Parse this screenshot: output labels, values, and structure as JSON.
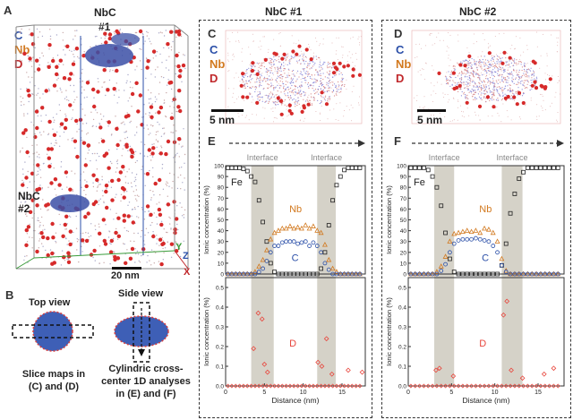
{
  "panel_a": {
    "letter": "A",
    "legend": {
      "c": "C",
      "nb": "Nb",
      "d": "D"
    },
    "label_top": {
      "name": "NbC",
      "num": "#1"
    },
    "label_bottom": {
      "name": "NbC",
      "num": "#2"
    },
    "scalebar": "20 nm",
    "axes": {
      "y": "Y",
      "z": "Z",
      "x": "X"
    }
  },
  "panel_b": {
    "letter": "B",
    "top_view": "Top view",
    "side_view": "Side view",
    "caption_left": [
      "Slice maps in",
      "(C) and (D)"
    ],
    "caption_right": [
      "Cylindric cross-",
      "center 1D analyses",
      "in (E) and (F)"
    ]
  },
  "column_titles": {
    "left": "NbC #1",
    "right": "NbC #2"
  },
  "map_c": {
    "letter": "C",
    "legend": {
      "c": "C",
      "nb": "Nb",
      "d": "D"
    },
    "scalebar": "5 nm"
  },
  "map_d": {
    "letter": "D",
    "legend": {
      "c": "C",
      "nb": "Nb",
      "d": "D"
    },
    "scalebar": "5 nm"
  },
  "profile_e": {
    "letter": "E"
  },
  "profile_f": {
    "letter": "F"
  },
  "colors": {
    "fe": "#222222",
    "nb": "#d2791f",
    "c": "#2b4fa8",
    "d": "#e8453c",
    "interface": "#d5d2c8"
  },
  "chart_data": [
    {
      "type": "scatter",
      "panel": "E",
      "xlabel": "Distance (nm)",
      "ylabel_top": "Ionic concentration (%)",
      "ylabel_bottom": "Ionic concentration (%)",
      "xlim": [
        0,
        18
      ],
      "xticks": [
        0,
        5,
        10,
        15
      ],
      "ylim_top": [
        0,
        100
      ],
      "yticks_top": [
        0,
        10,
        20,
        30,
        40,
        50,
        60,
        70,
        80,
        90,
        100
      ],
      "ylim_bottom": [
        0,
        0.55
      ],
      "yticks_bottom": [
        0.0,
        0.1,
        0.2,
        0.3,
        0.4,
        0.5
      ],
      "interfaces": [
        [
          3.3,
          6.2
        ],
        [
          11.8,
          14.2
        ]
      ],
      "interface_label": "Interface",
      "series_labels": {
        "fe": "Fe",
        "nb": "Nb",
        "c": "C",
        "d": "D"
      },
      "x": [
        0.3,
        0.8,
        1.3,
        1.8,
        2.3,
        2.8,
        3.3,
        3.8,
        4.3,
        4.8,
        5.3,
        5.8,
        6.3,
        6.8,
        7.3,
        7.8,
        8.3,
        8.8,
        9.3,
        9.8,
        10.3,
        10.8,
        11.3,
        11.8,
        12.3,
        12.8,
        13.3,
        13.8,
        14.3,
        14.8,
        15.3,
        15.8,
        16.3,
        16.8,
        17.3
      ],
      "fe": [
        98,
        98,
        98,
        98,
        97,
        95,
        90,
        85,
        68,
        48,
        30,
        10,
        2,
        0,
        0,
        0,
        0,
        0,
        0,
        0,
        0,
        0,
        0,
        0,
        5,
        20,
        45,
        68,
        82,
        90,
        96,
        98,
        98,
        98,
        98
      ],
      "nb": [
        0,
        0,
        0,
        0,
        0,
        0,
        0,
        2,
        7,
        13,
        22,
        32,
        38,
        40,
        42,
        42,
        44,
        42,
        43,
        42,
        45,
        42,
        44,
        40,
        38,
        27,
        13,
        5,
        2,
        0,
        0,
        0,
        0,
        0,
        0
      ],
      "c": [
        0,
        0,
        0,
        0,
        0,
        0,
        0,
        0,
        2,
        5,
        12,
        20,
        26,
        26,
        29,
        30,
        30,
        30,
        28,
        29,
        30,
        26,
        29,
        26,
        20,
        10,
        4,
        0,
        0,
        0,
        0,
        0,
        0,
        0,
        0
      ],
      "d_x": [
        3.6,
        4.2,
        4.7,
        5.0,
        5.4,
        11.9,
        12.4,
        13.0,
        13.7,
        15.8,
        17.6
      ],
      "d": [
        0.19,
        0.37,
        0.34,
        0.11,
        0.07,
        0.12,
        0.1,
        0.24,
        0.06,
        0.08,
        0.07
      ]
    },
    {
      "type": "scatter",
      "panel": "F",
      "xlabel": "Distance (nm)",
      "ylabel_top": "Ionic concentration (%)",
      "ylabel_bottom": "Ionic concentration (%)",
      "xlim": [
        0,
        18
      ],
      "xticks": [
        0,
        5,
        10,
        15
      ],
      "ylim_top": [
        0,
        100
      ],
      "yticks_top": [
        0,
        10,
        20,
        30,
        40,
        50,
        60,
        70,
        80,
        90,
        100
      ],
      "ylim_bottom": [
        0,
        0.55
      ],
      "yticks_bottom": [
        0.0,
        0.1,
        0.2,
        0.3,
        0.4,
        0.5
      ],
      "interfaces": [
        [
          3.0,
          5.3
        ],
        [
          10.8,
          13.2
        ]
      ],
      "interface_label": "Interface",
      "series_labels": {
        "fe": "Fe",
        "nb": "Nb",
        "c": "C",
        "d": "D"
      },
      "x": [
        0.3,
        0.8,
        1.3,
        1.8,
        2.3,
        2.8,
        3.3,
        3.8,
        4.3,
        4.8,
        5.3,
        5.8,
        6.3,
        6.8,
        7.3,
        7.8,
        8.3,
        8.8,
        9.3,
        9.8,
        10.3,
        10.8,
        11.3,
        11.8,
        12.3,
        12.8,
        13.3,
        13.8,
        14.3,
        14.8,
        15.3,
        15.8,
        16.3,
        16.8,
        17.3
      ],
      "fe": [
        98,
        98,
        98,
        98,
        96,
        90,
        80,
        63,
        38,
        14,
        2,
        0,
        0,
        0,
        0,
        0,
        0,
        0,
        0,
        0,
        0,
        8,
        28,
        56,
        74,
        88,
        94,
        98,
        98,
        98,
        98,
        98,
        98,
        98,
        98
      ],
      "nb": [
        0,
        0,
        0,
        0,
        0,
        0,
        2,
        7,
        16,
        30,
        37,
        38,
        39,
        40,
        39,
        40,
        38,
        42,
        41,
        38,
        30,
        14,
        3,
        0,
        0,
        0,
        0,
        0,
        0,
        0,
        0,
        0,
        0,
        0,
        0
      ],
      "c": [
        0,
        0,
        0,
        0,
        0,
        0,
        0,
        3,
        9,
        20,
        28,
        31,
        32,
        32,
        32,
        33,
        32,
        31,
        30,
        26,
        20,
        8,
        2,
        0,
        0,
        0,
        0,
        0,
        0,
        0,
        0,
        0,
        0,
        0,
        0
      ],
      "d_x": [
        3.2,
        3.6,
        5.2,
        11.0,
        11.4,
        11.9,
        13.2,
        15.7,
        16.8
      ],
      "d": [
        0.08,
        0.09,
        0.05,
        0.36,
        0.43,
        0.08,
        0.04,
        0.06,
        0.09
      ]
    }
  ]
}
